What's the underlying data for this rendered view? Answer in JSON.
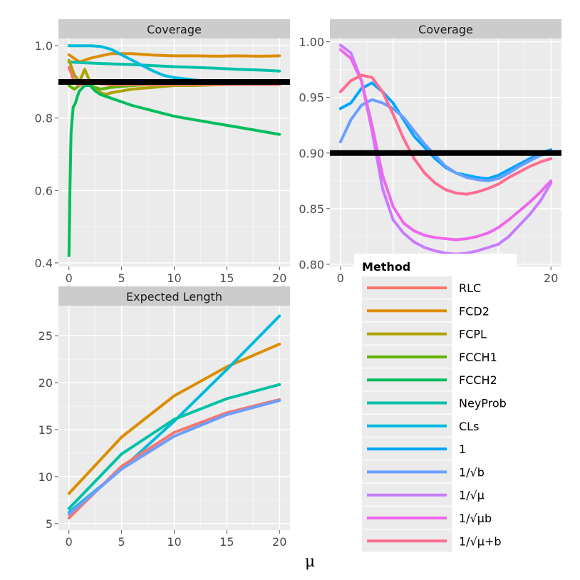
{
  "chart_data": [
    {
      "type": "line",
      "title": "Coverage",
      "xlim": [
        -1,
        21
      ],
      "ylim": [
        0.39,
        1.02
      ],
      "xticks": [
        0,
        5,
        10,
        15,
        20
      ],
      "yticks": [
        0.4,
        0.6,
        0.8,
        1.0
      ],
      "ytick_labels": [
        "0.4",
        "0.6",
        "0.8",
        "1.0"
      ],
      "reference_line": 0.9,
      "series": [
        {
          "name": "FCD2",
          "x": [
            0,
            1,
            2,
            3,
            4,
            6,
            8,
            10,
            12,
            14,
            16,
            18,
            20
          ],
          "y": [
            0.975,
            0.955,
            0.965,
            0.972,
            0.978,
            0.978,
            0.974,
            0.972,
            0.972,
            0.971,
            0.972,
            0.971,
            0.972
          ]
        },
        {
          "name": "NeyProb",
          "x": [
            0,
            2,
            4,
            6,
            8,
            10,
            12,
            14,
            16,
            18,
            20
          ],
          "y": [
            0.955,
            0.952,
            0.95,
            0.948,
            0.945,
            0.942,
            0.94,
            0.938,
            0.935,
            0.933,
            0.93
          ]
        },
        {
          "name": "CLs",
          "x": [
            0,
            1,
            2,
            3,
            4,
            5,
            6,
            7,
            8,
            9,
            10,
            12,
            14,
            16,
            18,
            20
          ],
          "y": [
            1.0,
            1.0,
            1.0,
            0.998,
            0.99,
            0.975,
            0.96,
            0.945,
            0.93,
            0.918,
            0.912,
            0.905,
            0.9,
            0.897,
            0.895,
            0.893
          ]
        },
        {
          "name": "FCPL",
          "x": [
            0,
            0.5,
            1,
            1.5,
            2,
            2.5,
            3,
            3.5,
            4,
            5,
            6,
            8,
            10,
            12,
            14,
            16,
            18,
            20
          ],
          "y": [
            0.96,
            0.92,
            0.9,
            0.935,
            0.9,
            0.88,
            0.87,
            0.865,
            0.87,
            0.875,
            0.88,
            0.885,
            0.89,
            0.89,
            0.892,
            0.893,
            0.893,
            0.893
          ]
        },
        {
          "name": "FCCH1",
          "x": [
            0,
            0.5,
            1,
            1.5,
            2,
            3,
            4,
            6,
            8,
            10,
            12,
            14,
            16,
            18,
            20
          ],
          "y": [
            0.89,
            0.88,
            0.89,
            0.9,
            0.89,
            0.88,
            0.885,
            0.89,
            0.893,
            0.895,
            0.895,
            0.895,
            0.895,
            0.895,
            0.895
          ]
        },
        {
          "name": "FCCH2",
          "x": [
            0,
            0.1,
            0.2,
            0.4,
            0.6,
            0.8,
            1,
            1.5,
            2,
            2.5,
            3,
            3.5,
            4,
            5,
            6,
            8,
            10,
            12,
            14,
            16,
            18,
            20
          ],
          "y": [
            0.42,
            0.62,
            0.76,
            0.83,
            0.84,
            0.86,
            0.875,
            0.89,
            0.89,
            0.875,
            0.865,
            0.86,
            0.855,
            0.845,
            0.835,
            0.82,
            0.805,
            0.795,
            0.785,
            0.775,
            0.765,
            0.755
          ]
        },
        {
          "name": "RLC",
          "x": [
            0,
            0.5,
            1,
            1.5,
            2,
            3,
            4,
            5,
            6,
            8,
            10,
            12,
            14,
            16,
            18,
            20
          ],
          "y": [
            0.94,
            0.9,
            0.89,
            0.895,
            0.9,
            0.895,
            0.892,
            0.892,
            0.893,
            0.893,
            0.893,
            0.893,
            0.893,
            0.893,
            0.893,
            0.893
          ]
        }
      ]
    },
    {
      "type": "line",
      "title": "Coverage",
      "xlim": [
        -1,
        21
      ],
      "ylim": [
        0.798,
        1.003
      ],
      "xticks": [
        0,
        20
      ],
      "yticks": [
        0.8,
        0.85,
        0.9,
        0.95,
        1.0
      ],
      "ytick_labels": [
        "0.80",
        "0.85",
        "0.90",
        "0.95",
        "1.00"
      ],
      "reference_line": 0.9,
      "series": [
        {
          "name": "1",
          "x": [
            0,
            1,
            2,
            3,
            4,
            5,
            6,
            7,
            8,
            9,
            10,
            11,
            12,
            13,
            14,
            15,
            16,
            17,
            18,
            19,
            20
          ],
          "y": [
            0.94,
            0.945,
            0.958,
            0.963,
            0.955,
            0.945,
            0.93,
            0.915,
            0.905,
            0.895,
            0.887,
            0.882,
            0.88,
            0.878,
            0.877,
            0.88,
            0.885,
            0.89,
            0.895,
            0.9,
            0.903
          ]
        },
        {
          "name": "1/√b",
          "x": [
            0,
            1,
            2,
            3,
            4,
            5,
            6,
            7,
            8,
            9,
            10,
            11,
            12,
            13,
            14,
            15,
            16,
            17,
            18,
            19,
            20
          ],
          "y": [
            0.91,
            0.93,
            0.943,
            0.948,
            0.945,
            0.94,
            0.932,
            0.92,
            0.908,
            0.898,
            0.888,
            0.882,
            0.878,
            0.876,
            0.875,
            0.877,
            0.882,
            0.888,
            0.893,
            0.898,
            0.9
          ]
        },
        {
          "name": "1/√μ",
          "x": [
            0,
            1,
            2,
            3,
            4,
            5,
            6,
            7,
            8,
            9,
            10,
            11,
            12,
            13,
            14,
            15,
            16,
            17,
            18,
            19,
            20
          ],
          "y": [
            0.997,
            0.99,
            0.965,
            0.92,
            0.868,
            0.84,
            0.828,
            0.82,
            0.815,
            0.812,
            0.81,
            0.809,
            0.81,
            0.812,
            0.815,
            0.818,
            0.825,
            0.835,
            0.845,
            0.857,
            0.873
          ]
        },
        {
          "name": "1/√μb",
          "x": [
            0,
            1,
            2,
            3,
            4,
            5,
            6,
            7,
            8,
            9,
            10,
            11,
            12,
            13,
            14,
            15,
            16,
            17,
            18,
            19,
            20
          ],
          "y": [
            0.993,
            0.985,
            0.965,
            0.925,
            0.88,
            0.852,
            0.837,
            0.83,
            0.826,
            0.824,
            0.823,
            0.822,
            0.823,
            0.825,
            0.828,
            0.833,
            0.84,
            0.848,
            0.856,
            0.865,
            0.875
          ]
        },
        {
          "name": "1/√μ+b",
          "x": [
            0,
            1,
            2,
            3,
            4,
            5,
            6,
            7,
            8,
            9,
            10,
            11,
            12,
            13,
            14,
            15,
            16,
            17,
            18,
            19,
            20
          ],
          "y": [
            0.955,
            0.965,
            0.97,
            0.968,
            0.955,
            0.935,
            0.913,
            0.895,
            0.882,
            0.873,
            0.867,
            0.864,
            0.863,
            0.865,
            0.868,
            0.872,
            0.878,
            0.883,
            0.888,
            0.892,
            0.895
          ]
        }
      ]
    },
    {
      "type": "line",
      "title": "Expected Length",
      "xlim": [
        -1,
        21
      ],
      "ylim": [
        4.3,
        28.2
      ],
      "xticks": [
        0,
        5,
        10,
        15,
        20
      ],
      "yticks": [
        5,
        10,
        15,
        20,
        25
      ],
      "ytick_labels": [
        "5",
        "10",
        "15",
        "20",
        "25"
      ],
      "series": [
        {
          "name": "FCD2",
          "x": [
            0,
            5,
            10,
            15,
            20
          ],
          "y": [
            8.2,
            14.2,
            18.6,
            21.7,
            24.1
          ]
        },
        {
          "name": "CLs",
          "x": [
            0,
            5,
            10,
            15,
            20
          ],
          "y": [
            6.2,
            10.8,
            15.9,
            21.4,
            27.1
          ]
        },
        {
          "name": "NeyProb",
          "x": [
            0,
            5,
            10,
            15,
            20
          ],
          "y": [
            6.6,
            12.4,
            16.1,
            18.3,
            19.8
          ]
        },
        {
          "name": "RLC",
          "x": [
            0,
            5,
            10,
            15,
            20
          ],
          "y": [
            5.6,
            11.1,
            14.7,
            16.8,
            18.2
          ]
        },
        {
          "name": "1/√b",
          "x": [
            0,
            5,
            10,
            15,
            20
          ],
          "y": [
            6.0,
            10.8,
            14.3,
            16.6,
            18.1
          ]
        }
      ]
    }
  ],
  "legend": {
    "title": "Method",
    "entries": [
      {
        "label": "RLC",
        "color": "#F8766D"
      },
      {
        "label": "FCD2",
        "color": "#DB8E00"
      },
      {
        "label": "FCPL",
        "color": "#AEA200"
      },
      {
        "label": "FCCH1",
        "color": "#64B200"
      },
      {
        "label": "FCCH2",
        "color": "#00BD5C"
      },
      {
        "label": "NeyProb",
        "color": "#00C1A7"
      },
      {
        "label": "CLs",
        "color": "#00BADE"
      },
      {
        "label": "1",
        "color": "#00A6FF"
      },
      {
        "label": "1/√b",
        "color": "#6B9FFF"
      },
      {
        "label": "1/√μ",
        "color": "#C77CFF"
      },
      {
        "label": "1/√μb",
        "color": "#EF67EB"
      },
      {
        "label": "1/√μ+b",
        "color": "#FF6C91"
      }
    ]
  },
  "x_axis_label": "μ",
  "colors": {
    "panel_bg": "#EBEBEB",
    "strip_bg": "#CCCCCC",
    "grid_major": "#FFFFFF",
    "grid_minor": "#F5F5F5",
    "reference_line": "#000000"
  }
}
